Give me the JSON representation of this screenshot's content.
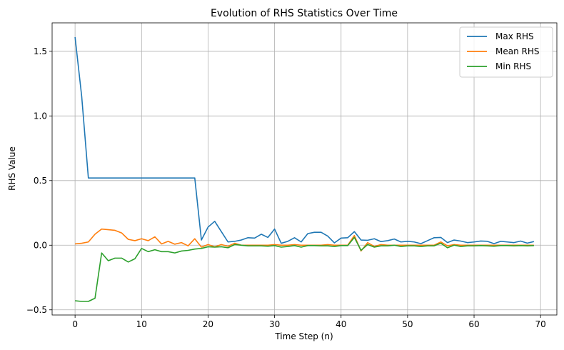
{
  "chart_data": {
    "type": "line",
    "title": "Evolution of RHS Statistics Over Time",
    "xlabel": "Time Step (n)",
    "ylabel": "RHS Value",
    "xlim": [
      -3.45,
      72.45
    ],
    "ylim": [
      -0.54,
      1.72
    ],
    "xticks": [
      0,
      10,
      20,
      30,
      40,
      50,
      60,
      70
    ],
    "yticks": [
      -0.5,
      0.0,
      0.5,
      1.0,
      1.5
    ],
    "xtick_labels": [
      "0",
      "10",
      "20",
      "30",
      "40",
      "50",
      "60",
      "70"
    ],
    "ytick_labels": [
      "−0.5",
      "0.0",
      "0.5",
      "1.0",
      "1.5"
    ],
    "grid": true,
    "legend_position": "top-right",
    "x": [
      0,
      1,
      2,
      3,
      4,
      5,
      6,
      7,
      8,
      9,
      10,
      11,
      12,
      13,
      14,
      15,
      16,
      17,
      18,
      19,
      20,
      21,
      22,
      23,
      24,
      25,
      26,
      27,
      28,
      29,
      30,
      31,
      32,
      33,
      34,
      35,
      36,
      37,
      38,
      39,
      40,
      41,
      42,
      43,
      44,
      45,
      46,
      47,
      48,
      49,
      50,
      51,
      52,
      53,
      54,
      55,
      56,
      57,
      58,
      59,
      60,
      61,
      62,
      63,
      64,
      65,
      66,
      67,
      68,
      69
    ],
    "series": [
      {
        "name": "Max RHS",
        "color": "#1f77b4",
        "values": [
          1.61,
          1.15,
          0.52,
          0.52,
          0.52,
          0.52,
          0.52,
          0.52,
          0.52,
          0.52,
          0.52,
          0.52,
          0.52,
          0.52,
          0.52,
          0.52,
          0.52,
          0.52,
          0.52,
          0.04,
          0.14,
          0.185,
          0.105,
          0.025,
          0.03,
          0.04,
          0.058,
          0.055,
          0.085,
          0.06,
          0.125,
          0.015,
          0.03,
          0.058,
          0.025,
          0.09,
          0.1,
          0.1,
          0.07,
          0.018,
          0.055,
          0.058,
          0.105,
          0.04,
          0.038,
          0.05,
          0.028,
          0.035,
          0.048,
          0.025,
          0.03,
          0.025,
          0.012,
          0.035,
          0.058,
          0.06,
          0.02,
          0.04,
          0.032,
          0.02,
          0.025,
          0.032,
          0.03,
          0.012,
          0.03,
          0.025,
          0.02,
          0.032,
          0.016,
          0.028
        ]
      },
      {
        "name": "Mean RHS",
        "color": "#ff7f0e",
        "values": [
          0.01,
          0.015,
          0.025,
          0.085,
          0.125,
          0.12,
          0.115,
          0.095,
          0.045,
          0.035,
          0.05,
          0.035,
          0.065,
          0.01,
          0.03,
          0.008,
          0.02,
          -0.005,
          0.05,
          -0.015,
          0.005,
          -0.012,
          0.005,
          -0.008,
          0.015,
          0.0,
          0.0,
          0.0,
          0.0,
          0.0,
          0.005,
          0.0,
          0.0,
          0.005,
          0.0,
          0.0,
          0.0,
          0.0,
          0.005,
          0.0,
          0.0,
          0.0,
          0.075,
          -0.045,
          0.02,
          -0.01,
          0.005,
          0.0,
          0.0,
          0.0,
          0.0,
          0.0,
          0.0,
          0.0,
          0.0,
          0.025,
          -0.005,
          0.005,
          0.0,
          0.0,
          0.0,
          0.0,
          0.0,
          0.0,
          0.0,
          0.0,
          0.0,
          0.0,
          0.0,
          0.0
        ]
      },
      {
        "name": "Min RHS",
        "color": "#2ca02c",
        "values": [
          -0.43,
          -0.435,
          -0.435,
          -0.41,
          -0.06,
          -0.12,
          -0.1,
          -0.1,
          -0.13,
          -0.105,
          -0.025,
          -0.05,
          -0.035,
          -0.05,
          -0.05,
          -0.06,
          -0.045,
          -0.04,
          -0.03,
          -0.025,
          -0.012,
          -0.015,
          -0.012,
          -0.02,
          0.005,
          0.0,
          -0.005,
          -0.005,
          -0.005,
          -0.008,
          -0.003,
          -0.015,
          -0.01,
          -0.003,
          -0.015,
          -0.003,
          -0.003,
          -0.005,
          -0.005,
          -0.01,
          -0.003,
          -0.003,
          0.06,
          -0.04,
          0.005,
          -0.015,
          -0.005,
          -0.005,
          0.0,
          -0.01,
          -0.005,
          -0.005,
          -0.01,
          -0.005,
          -0.005,
          0.015,
          -0.02,
          0.0,
          -0.01,
          -0.005,
          -0.005,
          -0.003,
          -0.005,
          -0.008,
          -0.003,
          -0.003,
          -0.005,
          -0.003,
          -0.005,
          -0.003
        ]
      }
    ]
  }
}
